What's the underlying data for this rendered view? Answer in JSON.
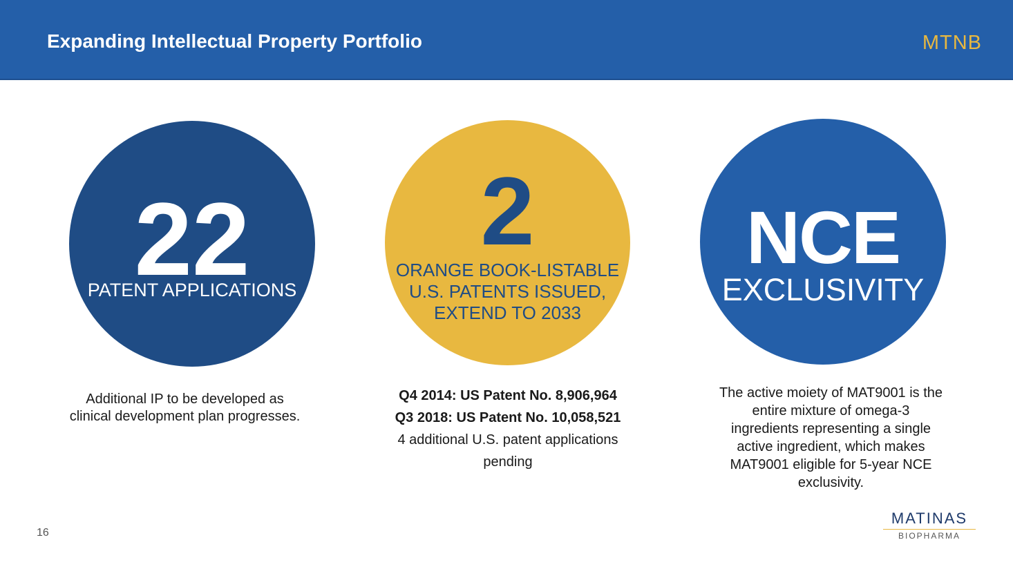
{
  "header": {
    "title": "Expanding Intellectual Property Portfolio",
    "ticker": "MTNB",
    "background": "#245fa9",
    "ticker_color": "#e8b840"
  },
  "stats": [
    {
      "value": "22",
      "label": "PATENT APPLICATIONS",
      "circle_color": "#1f4c85",
      "caption_lines": [
        "Additional IP to be developed as",
        "clinical development plan progresses."
      ]
    },
    {
      "value": "2",
      "label_lines": [
        "ORANGE BOOK-LISTABLE",
        "U.S. PATENTS ISSUED,",
        "EXTEND TO 2033"
      ],
      "circle_color": "#e8b840",
      "caption_bold_lines": [
        "Q4 2014: US Patent No. 8,906,964",
        "Q3 2018: US Patent No. 10,058,521"
      ],
      "caption_lines": [
        "4 additional U.S. patent applications",
        "pending"
      ]
    },
    {
      "value": "NCE",
      "label": "EXCLUSIVITY",
      "circle_color": "#245fa9",
      "caption_lines": [
        "The active moiety of MAT9001 is the",
        "entire mixture of omega-3",
        "ingredients representing a single",
        "active ingredient, which makes",
        "MAT9001 eligible for 5-year NCE",
        "exclusivity."
      ]
    }
  ],
  "footer": {
    "page_number": "16",
    "logo_name": "MATINAS",
    "logo_sub": "BIOPHARMA"
  }
}
